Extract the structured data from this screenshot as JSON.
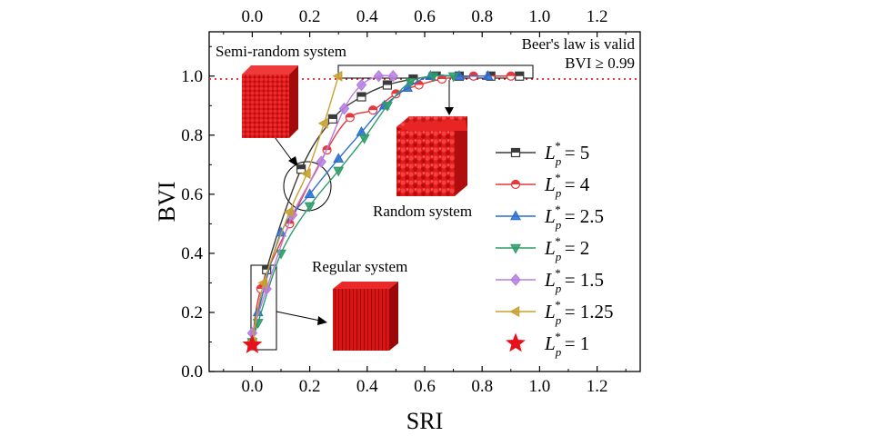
{
  "chart_data": {
    "type": "line",
    "xlabel": "SRI",
    "ylabel": "BVI",
    "xlim": [
      -0.15,
      1.35
    ],
    "ylim": [
      0,
      1.15
    ],
    "x_ticks": [
      "0.0",
      "0.2",
      "0.4",
      "0.6",
      "0.8",
      "1.0",
      "1.2"
    ],
    "y_ticks": [
      "0.0",
      "0.2",
      "0.4",
      "0.6",
      "0.8",
      "1.0"
    ],
    "top_axis_ticks": [
      "0.0",
      "0.2",
      "0.4",
      "0.6",
      "0.8",
      "1.0",
      "1.2"
    ],
    "grid": false,
    "legend_placement": "right",
    "reference_line": {
      "y": 0.99,
      "style": "dotted",
      "color": "#e0202a"
    },
    "annotations": {
      "semi_random": "Semi-random system",
      "random": "Random system",
      "regular": "Regular system",
      "beer_line1": "Beer's law is valid",
      "beer_line2": "BVI ≥ 0.99"
    },
    "legend_symbol": "L",
    "legend_subscript": "p",
    "legend_superscript": "*",
    "series": [
      {
        "name": "5",
        "color": "#3a3a3a",
        "marker": "square",
        "x": [
          0.0,
          0.05,
          0.17,
          0.28,
          0.38,
          0.47,
          0.56,
          0.64,
          0.72,
          0.83,
          0.93
        ],
        "y": [
          0.09,
          0.345,
          0.685,
          0.855,
          0.93,
          0.97,
          0.99,
          1.0,
          1.0,
          1.0,
          1.0
        ]
      },
      {
        "name": "4",
        "color": "#e8373a",
        "marker": "circle",
        "x": [
          0.0,
          0.03,
          0.13,
          0.26,
          0.34,
          0.42,
          0.5,
          0.58,
          0.66,
          0.77,
          0.9
        ],
        "y": [
          0.1,
          0.28,
          0.5,
          0.75,
          0.86,
          0.885,
          0.94,
          0.97,
          0.99,
          1.0,
          1.0
        ]
      },
      {
        "name": "2.5",
        "color": "#2a6fd0",
        "marker": "triangle-up",
        "x": [
          0.0,
          0.02,
          0.1,
          0.2,
          0.3,
          0.38,
          0.46,
          0.54,
          0.62,
          0.72,
          0.82
        ],
        "y": [
          0.1,
          0.2,
          0.47,
          0.6,
          0.72,
          0.81,
          0.9,
          0.96,
          1.0,
          1.0,
          1.0
        ]
      },
      {
        "name": "2",
        "color": "#2e9b6a",
        "marker": "triangle-down",
        "x": [
          0.0,
          0.02,
          0.1,
          0.2,
          0.3,
          0.39,
          0.47,
          0.55,
          0.63,
          0.7
        ],
        "y": [
          0.1,
          0.165,
          0.4,
          0.56,
          0.68,
          0.79,
          0.9,
          0.98,
          1.0,
          1.0
        ]
      },
      {
        "name": "1.5",
        "color": "#b57ee0",
        "marker": "diamond",
        "x": [
          0.0,
          0.05,
          0.14,
          0.24,
          0.32,
          0.38,
          0.44,
          0.49
        ],
        "y": [
          0.13,
          0.28,
          0.53,
          0.71,
          0.89,
          0.97,
          1.0,
          1.0
        ]
      },
      {
        "name": "1.25",
        "color": "#c7a02e",
        "marker": "triangle-left",
        "x": [
          0.0,
          0.04,
          0.13,
          0.19,
          0.25,
          0.3
        ],
        "y": [
          0.1,
          0.3,
          0.54,
          0.67,
          0.84,
          1.0
        ]
      },
      {
        "name": "1",
        "color": "#e8101a",
        "marker": "star",
        "x": [
          0.0
        ],
        "y": [
          0.09
        ]
      }
    ]
  }
}
